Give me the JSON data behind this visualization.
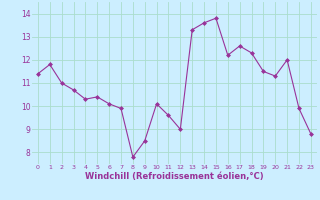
{
  "x": [
    0,
    1,
    2,
    3,
    4,
    5,
    6,
    7,
    8,
    9,
    10,
    11,
    12,
    13,
    14,
    15,
    16,
    17,
    18,
    19,
    20,
    21,
    22,
    23
  ],
  "y": [
    11.4,
    11.8,
    11.0,
    10.7,
    10.3,
    10.4,
    10.1,
    9.9,
    7.8,
    8.5,
    10.1,
    9.6,
    9.0,
    13.3,
    13.6,
    13.8,
    12.2,
    12.6,
    12.3,
    11.5,
    11.3,
    12.0,
    9.9,
    8.8
  ],
  "line_color": "#993399",
  "marker": "D",
  "markersize": 2,
  "linewidth": 0.8,
  "xlabel": "Windchill (Refroidissement éolien,°C)",
  "xlabel_fontsize": 6,
  "background_color": "#cceeff",
  "grid_color": "#aaddcc",
  "tick_color": "#993399",
  "label_color": "#993399",
  "ylim": [
    7.5,
    14.5
  ],
  "yticks": [
    8,
    9,
    10,
    11,
    12,
    13,
    14
  ],
  "xlim": [
    -0.5,
    23.5
  ],
  "xticks": [
    0,
    1,
    2,
    3,
    4,
    5,
    6,
    7,
    8,
    9,
    10,
    11,
    12,
    13,
    14,
    15,
    16,
    17,
    18,
    19,
    20,
    21,
    22,
    23
  ]
}
